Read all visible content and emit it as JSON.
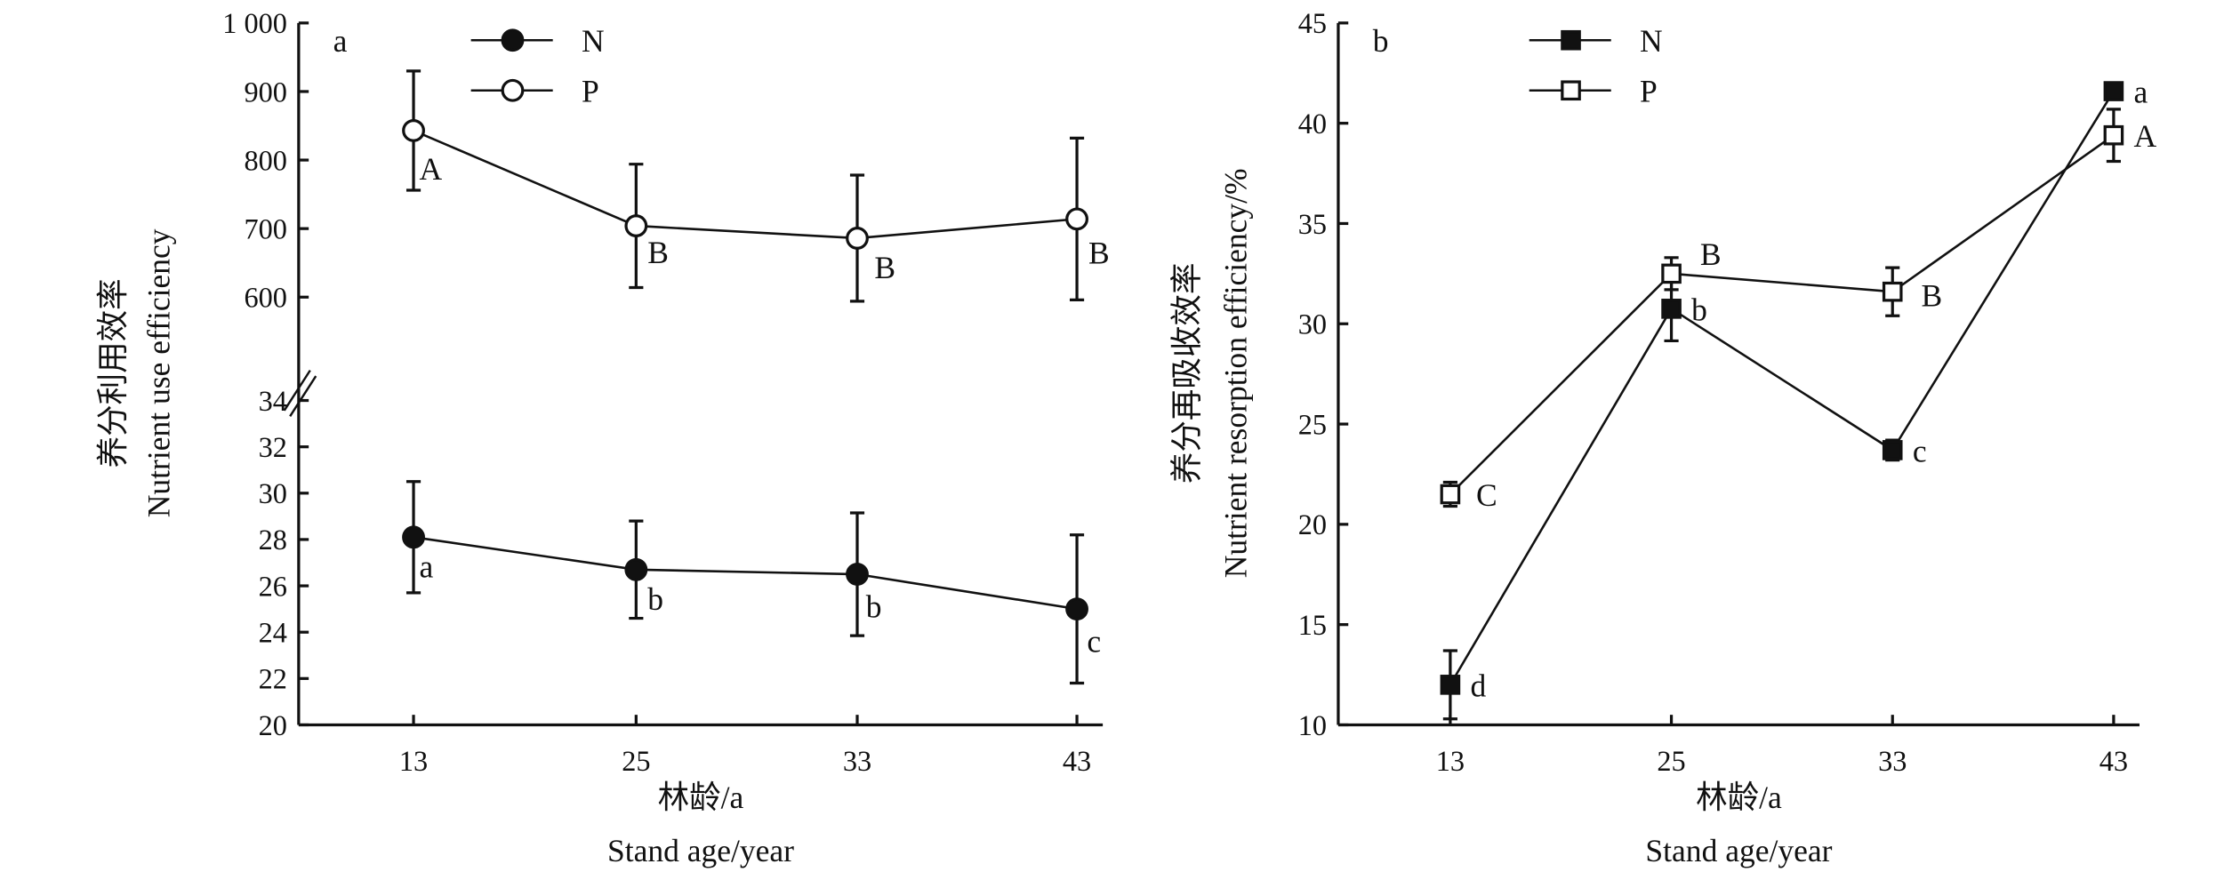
{
  "chart_data": [
    {
      "type": "line",
      "panel_label": "a",
      "x": [
        "13",
        "25",
        "33",
        "43"
      ],
      "xlabel_cn": "林龄/a",
      "xlabel": "Stand age/year",
      "ylabel_cn": "养分利用效率",
      "ylabel": "Nutrient use efficiency",
      "y_axis_break": true,
      "upper_ticks": [
        "1 000",
        "900",
        "800",
        "700",
        "600"
      ],
      "upper_tick_values": [
        1000,
        900,
        800,
        700,
        600
      ],
      "lower_ticks": [
        "34",
        "32",
        "30",
        "28",
        "26",
        "24",
        "22",
        "20"
      ],
      "lower_tick_values": [
        34,
        32,
        30,
        28,
        26,
        24,
        22,
        20
      ],
      "legend_placement": "top-left",
      "series": [
        {
          "name": "N",
          "marker": "filled-circle",
          "segment": "lower",
          "values": [
            28.1,
            26.7,
            26.5,
            25.0
          ],
          "errors": [
            2.4,
            2.1,
            2.65,
            3.2
          ],
          "letters": [
            "a",
            "b",
            "b",
            "c"
          ]
        },
        {
          "name": "P",
          "marker": "open-circle",
          "segment": "upper",
          "values": [
            843,
            704,
            686,
            714
          ],
          "errors": [
            87,
            90,
            92,
            118
          ],
          "letters": [
            "A",
            "B",
            "B",
            "B"
          ]
        }
      ]
    },
    {
      "type": "line",
      "panel_label": "b",
      "x": [
        "13",
        "25",
        "33",
        "43"
      ],
      "xlabel_cn": "林龄/a",
      "xlabel": "Stand age/year",
      "ylabel_cn": "养分再吸收效率",
      "ylabel": "Nutrient resorption efficiency/%",
      "ylim": [
        10,
        45
      ],
      "yticks": [
        "45",
        "40",
        "35",
        "30",
        "25",
        "20",
        "15",
        "10"
      ],
      "ytick_values": [
        45,
        40,
        35,
        30,
        25,
        20,
        15,
        10
      ],
      "legend_placement": "top-left",
      "series": [
        {
          "name": "N",
          "marker": "filled-square",
          "values": [
            12.0,
            30.75,
            23.7,
            41.6
          ],
          "errors": [
            1.7,
            1.6,
            0.5,
            0.3
          ],
          "letters": [
            "d",
            "b",
            "c",
            "a"
          ]
        },
        {
          "name": "P",
          "marker": "open-square",
          "values": [
            21.5,
            32.5,
            31.6,
            39.4
          ],
          "errors": [
            0.6,
            0.8,
            1.2,
            1.3
          ],
          "letters": [
            "C",
            "B",
            "B",
            "A"
          ]
        }
      ]
    }
  ]
}
